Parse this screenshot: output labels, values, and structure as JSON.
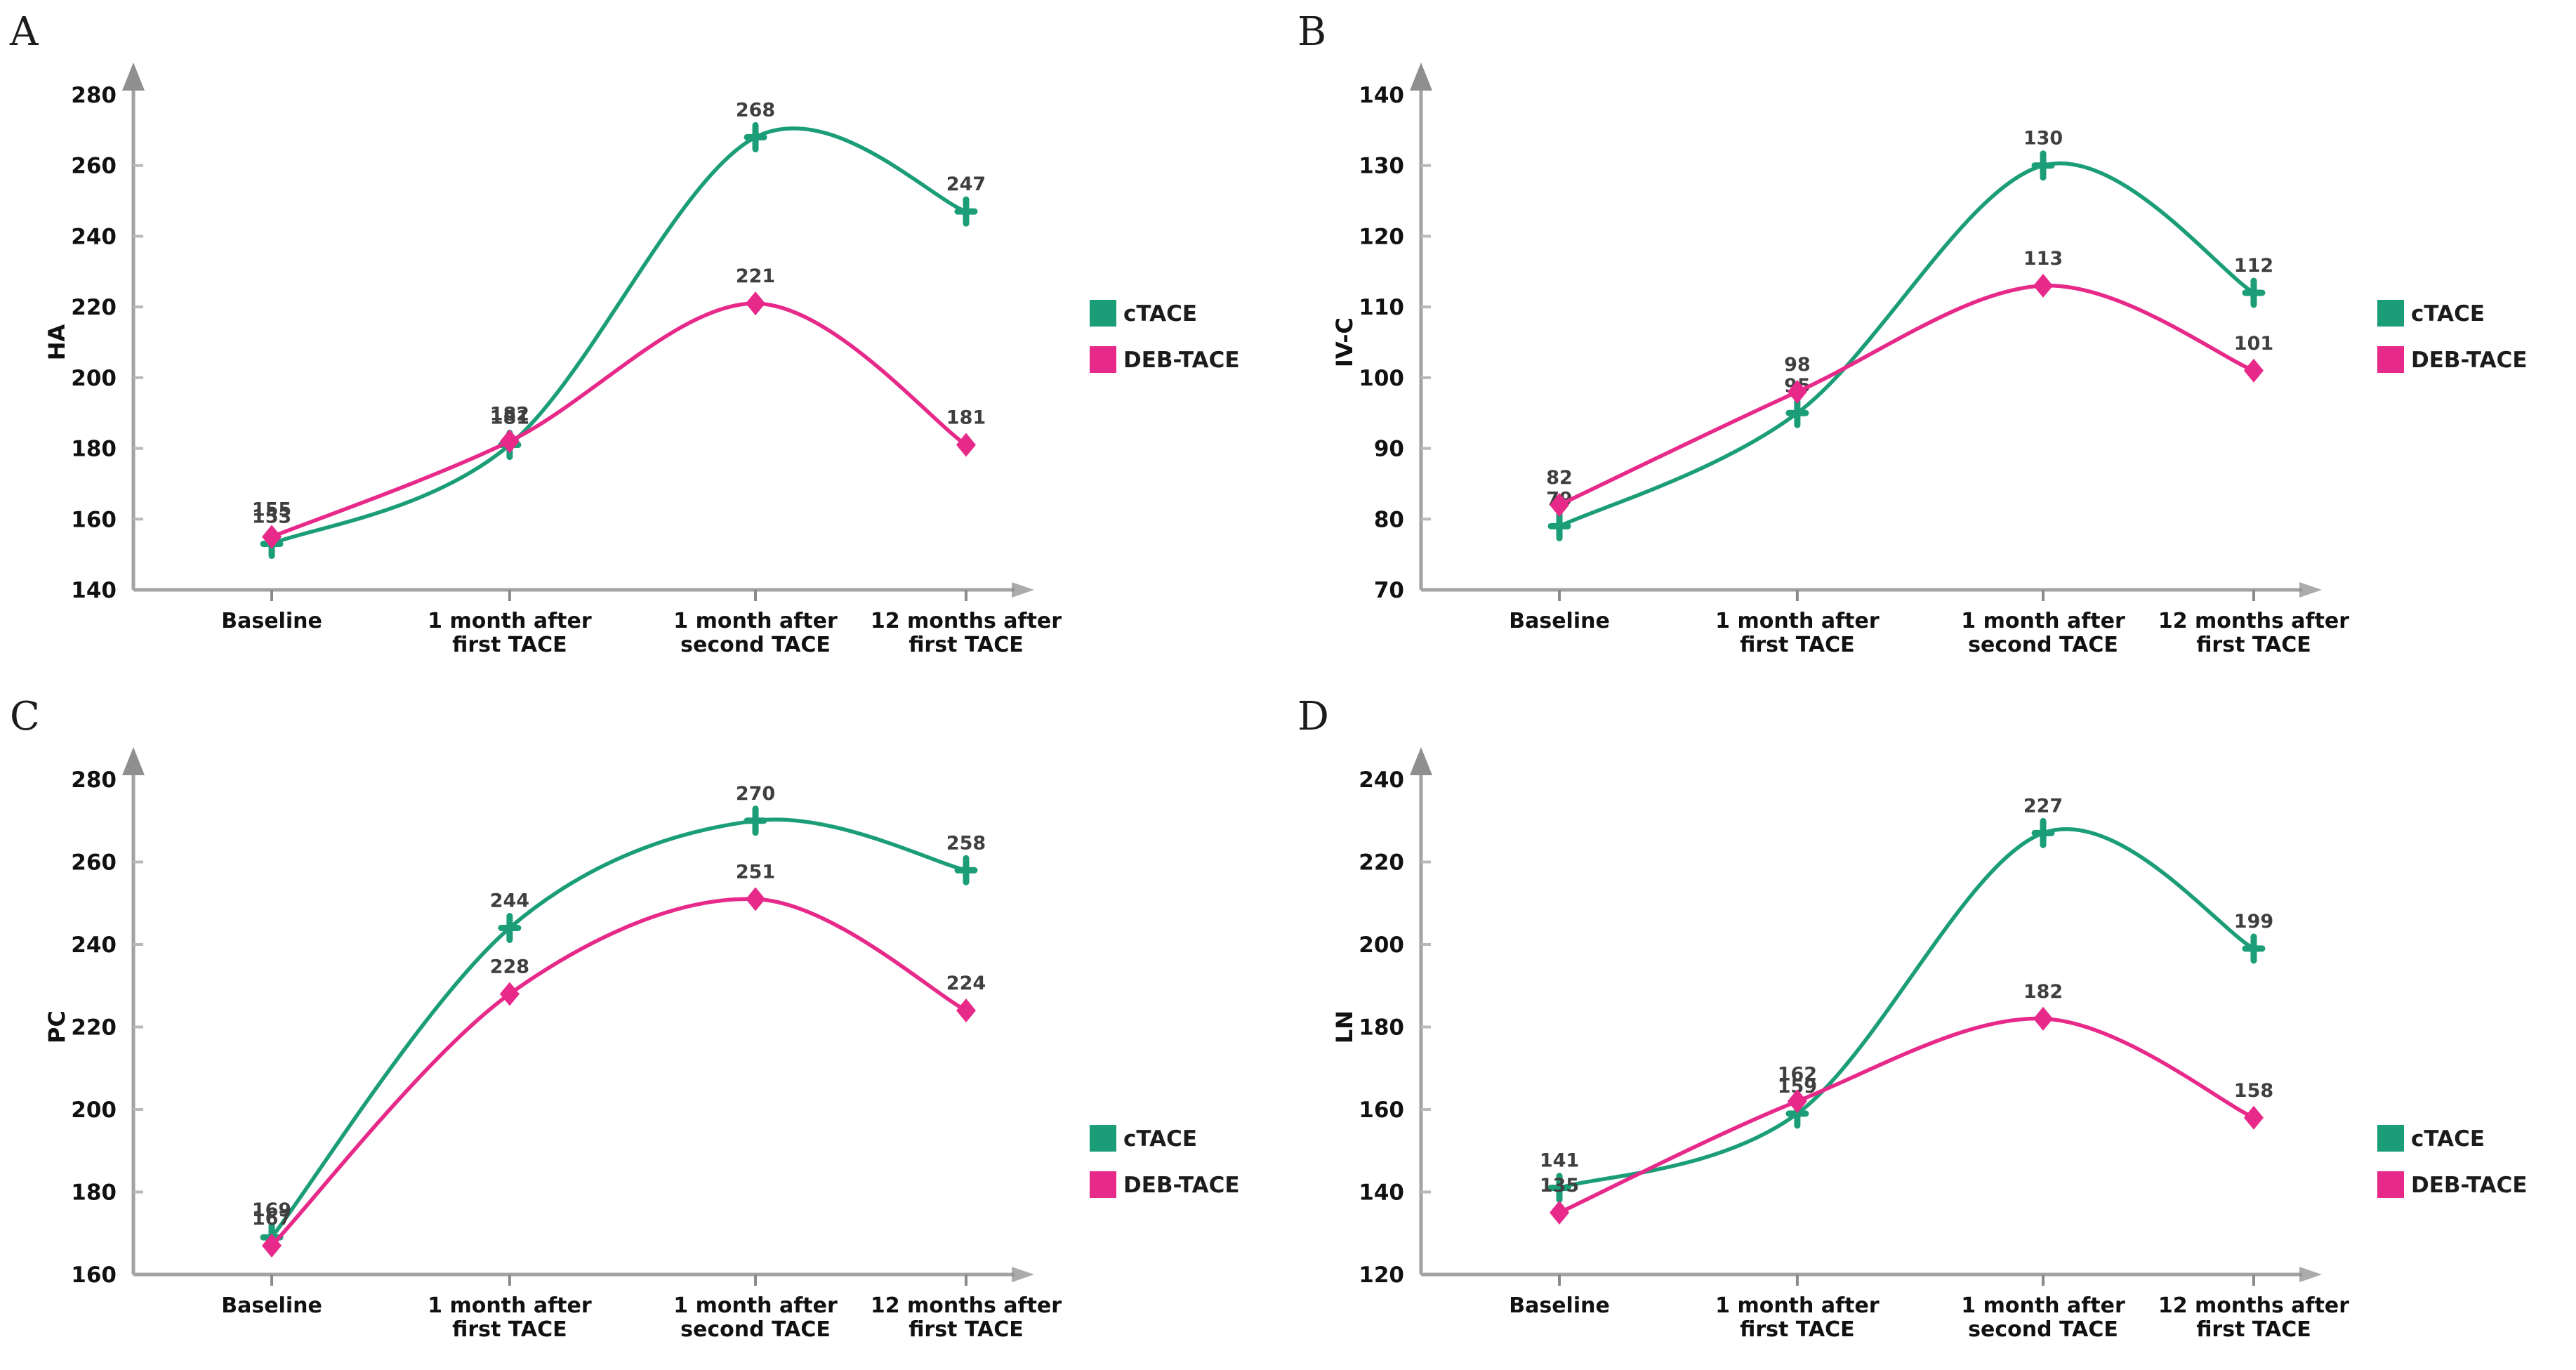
{
  "figure": {
    "legend": {
      "entries": [
        "cTACE",
        "DEB-TACE"
      ],
      "position": "right-center"
    },
    "colors": {
      "ctace": "#1b9e77",
      "deb_tace": "#e7298a",
      "axis": "#a3a3a3",
      "tick": "#8c8c8c",
      "arrow": "#8f8f8f",
      "data_label": "#3f3f3f",
      "text": "#111111"
    },
    "icons": {
      "ctace_marker": "plus-cross-marker",
      "deb_tace_marker": "diamond-marker",
      "y_axis_end": "up-arrow-icon",
      "x_axis_end": "right-arrow-icon"
    }
  },
  "chart_data": [
    {
      "panel_letter": "A",
      "type": "line",
      "ylabel": "HA",
      "ylim": [
        140,
        280
      ],
      "ytick_step": 20,
      "grid": false,
      "categories": [
        [
          "Baseline"
        ],
        [
          "1 month after",
          "first TACE"
        ],
        [
          "1 month after",
          "second TACE"
        ],
        [
          "12 months after",
          "first TACE"
        ]
      ],
      "series": [
        {
          "name": "cTACE",
          "values": [
            153,
            181,
            268,
            247
          ]
        },
        {
          "name": "DEB-TACE",
          "values": [
            155,
            182,
            221,
            181
          ]
        }
      ]
    },
    {
      "panel_letter": "B",
      "type": "line",
      "ylabel": "IV-C",
      "ylim": [
        70,
        140
      ],
      "ytick_step": 10,
      "grid": false,
      "categories": [
        [
          "Baseline"
        ],
        [
          "1 month after",
          "first TACE"
        ],
        [
          "1 month after",
          "second TACE"
        ],
        [
          "12 months after",
          "first TACE"
        ]
      ],
      "series": [
        {
          "name": "cTACE",
          "values": [
            79,
            95,
            130,
            112
          ]
        },
        {
          "name": "DEB-TACE",
          "values": [
            82,
            98,
            113,
            101
          ]
        }
      ]
    },
    {
      "panel_letter": "C",
      "type": "line",
      "ylabel": "PC",
      "ylim": [
        160,
        280
      ],
      "ytick_step": 20,
      "grid": false,
      "categories": [
        [
          "Baseline"
        ],
        [
          "1 month after",
          "first TACE"
        ],
        [
          "1 month after",
          "second TACE"
        ],
        [
          "12 months after",
          "first TACE"
        ]
      ],
      "series": [
        {
          "name": "cTACE",
          "values": [
            169,
            244,
            270,
            258
          ]
        },
        {
          "name": "DEB-TACE",
          "values": [
            167,
            228,
            251,
            224
          ]
        }
      ]
    },
    {
      "panel_letter": "D",
      "type": "line",
      "ylabel": "LN",
      "ylim": [
        120,
        240
      ],
      "ytick_step": 20,
      "grid": false,
      "categories": [
        [
          "Baseline"
        ],
        [
          "1 month after",
          "first TACE"
        ],
        [
          "1 month after",
          "second TACE"
        ],
        [
          "12 months after",
          "first TACE"
        ]
      ],
      "series": [
        {
          "name": "cTACE",
          "values": [
            141,
            159,
            227,
            199
          ]
        },
        {
          "name": "DEB-TACE",
          "values": [
            135,
            162,
            182,
            158
          ]
        }
      ]
    }
  ]
}
